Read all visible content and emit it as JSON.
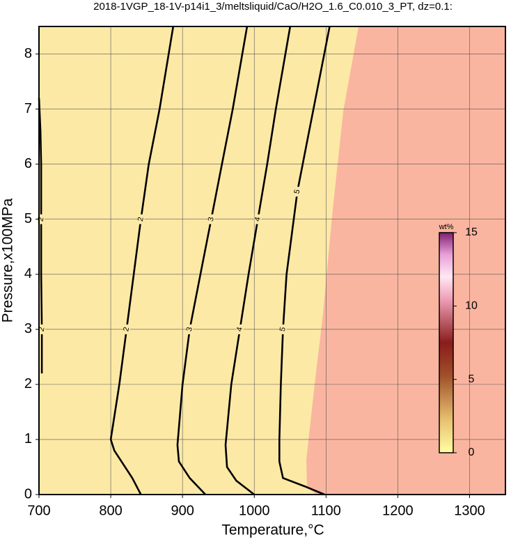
{
  "chart_data": {
    "type": "contour",
    "title": "2018-1VGP_18-1V-p14i1_3/meltsliquid/CaO/H2O_1.6_C0.010_3_PT, dz=0.1:",
    "x_label": "Temperature,°C",
    "y_label": "Pressure,x100MPa",
    "xlim": [
      700,
      1350
    ],
    "ylim": [
      0,
      8.5
    ],
    "xticks": [
      700,
      800,
      900,
      1000,
      1100,
      1200,
      1300
    ],
    "yticks": [
      0,
      1,
      2,
      3,
      4,
      5,
      6,
      7,
      8
    ],
    "grid": true,
    "contours": [
      {
        "level": 2,
        "x": [
          704,
          704,
          703,
          703,
          703,
          702,
          700
        ],
        "y": [
          2.2,
          3,
          4,
          5,
          6,
          6.6,
          7.2
        ]
      },
      {
        "level": 2,
        "x": [
          842,
          830,
          805,
          800,
          812,
          822,
          832,
          842,
          853,
          868,
          887
        ],
        "y": [
          0,
          0.3,
          0.8,
          1.0,
          2,
          3,
          4,
          5,
          6,
          7,
          8.5
        ]
      },
      {
        "level": 3,
        "x": [
          932,
          910,
          895,
          893,
          900,
          910,
          925,
          940,
          955,
          970,
          990
        ],
        "y": [
          0,
          0.3,
          0.6,
          0.9,
          2,
          3,
          4,
          5,
          6,
          7,
          8.5
        ]
      },
      {
        "level": 4,
        "x": [
          1000,
          975,
          962,
          960,
          968,
          980,
          992,
          1005,
          1018,
          1030,
          1050
        ],
        "y": [
          0,
          0.25,
          0.5,
          0.9,
          2,
          3,
          4,
          5,
          6,
          7,
          8.5
        ]
      },
      {
        "level": 5,
        "x": [
          1098,
          1070,
          1040,
          1035,
          1035,
          1037,
          1040,
          1045,
          1050,
          1060,
          1075,
          1090,
          1105
        ],
        "y": [
          0,
          0.15,
          0.3,
          0.6,
          1,
          2,
          3,
          4,
          4.5,
          5.5,
          6.5,
          7.5,
          8.5
        ]
      }
    ],
    "colorbar": {
      "label": "wt%",
      "lim": [
        0,
        15
      ],
      "ticks": [
        0,
        5,
        10,
        15
      ]
    }
  }
}
